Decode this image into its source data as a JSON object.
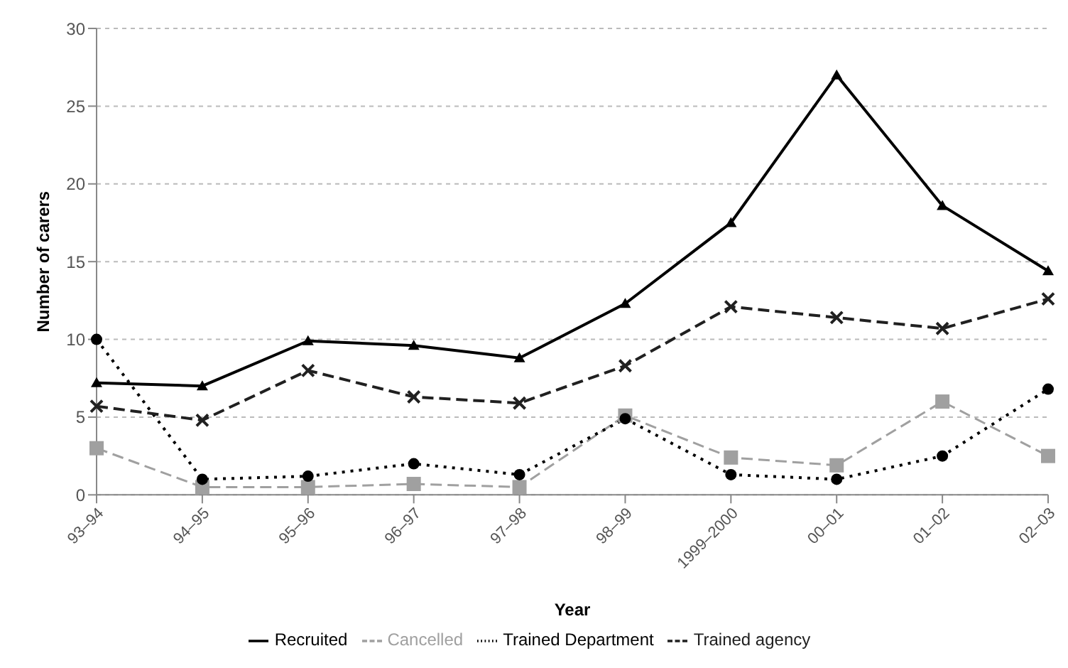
{
  "chart_data": {
    "type": "line",
    "xlabel": "Year",
    "ylabel": "Number of carers",
    "categories": [
      "93–94",
      "94–95",
      "95–96",
      "96–97",
      "97–98",
      "98–99",
      "1999–2000",
      "00–01",
      "01–02",
      "02–03"
    ],
    "series": [
      {
        "name": "Recruited",
        "color": "#000000",
        "marker": "triangle",
        "line_style": "solid",
        "values": [
          7.2,
          7.0,
          9.9,
          9.6,
          8.8,
          12.3,
          17.5,
          27.0,
          18.6,
          14.4
        ]
      },
      {
        "name": "Cancelled",
        "color": "#a0a0a0",
        "marker": "square",
        "line_style": "dashed",
        "values": [
          3.0,
          0.5,
          0.5,
          0.7,
          0.5,
          5.1,
          2.4,
          1.9,
          6.0,
          2.5
        ]
      },
      {
        "name": "Trained Department",
        "color": "#000000",
        "marker": "circle",
        "line_style": "dotted",
        "values": [
          10.0,
          1.0,
          1.2,
          2.0,
          1.3,
          4.9,
          1.3,
          1.0,
          2.5,
          6.8
        ]
      },
      {
        "name": "Trained agency",
        "color": "#202020",
        "marker": "cross",
        "line_style": "dashed",
        "values": [
          5.7,
          4.8,
          8.0,
          6.3,
          5.9,
          8.3,
          12.1,
          11.4,
          10.7,
          12.6
        ]
      }
    ],
    "ylim": [
      0,
      30
    ],
    "yticks": [
      0,
      5,
      10,
      15,
      20,
      25,
      30
    ],
    "grid": "y",
    "legend": "bottom"
  }
}
